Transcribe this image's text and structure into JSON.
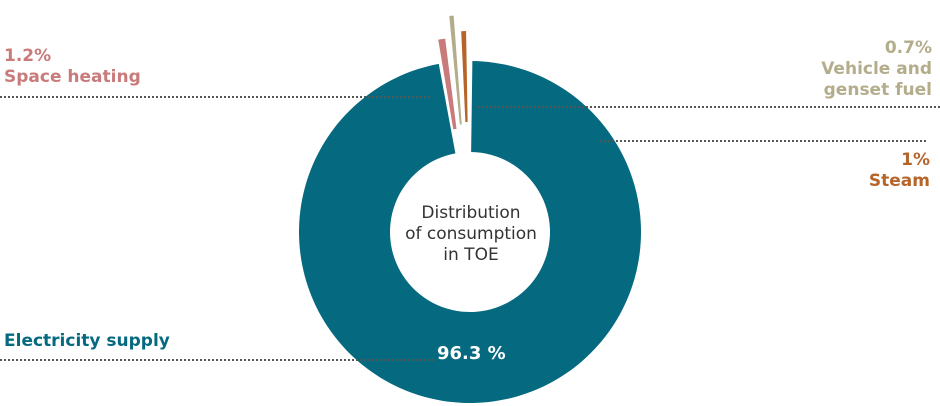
{
  "chart_data": {
    "type": "pie",
    "subtype": "donut",
    "center_label": [
      "Distribution",
      "of consumption",
      "in TOE"
    ],
    "slices": [
      {
        "label": "Electricity supply",
        "percent_label": "96.3 %",
        "value": 96.3,
        "color": "#056a80"
      },
      {
        "label": "Space heating",
        "percent_label": "1.2%",
        "value": 1.2,
        "color": "#c97b7b"
      },
      {
        "label": "Vehicle and genset fuel",
        "label_lines": [
          "Vehicle and",
          "genset fuel"
        ],
        "percent_label": "0.7%",
        "value": 0.7,
        "color": "#b3ad8c"
      },
      {
        "label": "Steam",
        "percent_label": "1%",
        "value": 1.0,
        "color": "#b5652a"
      }
    ]
  }
}
